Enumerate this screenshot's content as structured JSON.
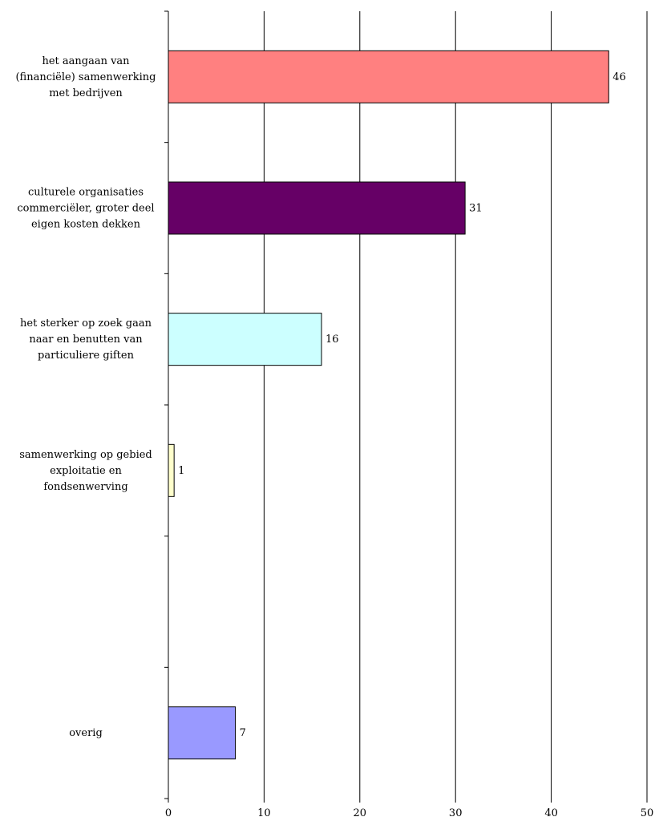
{
  "chart_data": {
    "type": "bar",
    "orientation": "horizontal",
    "categories": [
      [
        "het aangaan van",
        "(financiële) samenwerking",
        "met bedrijven"
      ],
      [
        "culturele organisaties",
        "commerciëler, groter deel",
        "eigen kosten dekken"
      ],
      [
        "het sterker op zoek gaan",
        "naar en benutten van",
        "particuliere giften"
      ],
      [
        "samenwerking op gebied",
        "exploitatie en",
        "fondsenwerving"
      ],
      [],
      [
        "overig"
      ]
    ],
    "values": [
      46,
      31,
      16,
      1,
      null,
      7
    ],
    "display_values": [
      46,
      31,
      16,
      0.6,
      null,
      7
    ],
    "data_labels": [
      "46",
      "31",
      "16",
      "1",
      "",
      "7"
    ],
    "colors": [
      "#FF8080",
      "#660066",
      "#CCFFFF",
      "#FFFFCC",
      "#ffffff",
      "#9999FF"
    ],
    "xlim": [
      0,
      50
    ],
    "x_ticks": [
      0,
      10,
      20,
      30,
      40,
      50
    ],
    "x_tick_labels": [
      "0",
      "10",
      "20",
      "30",
      "40",
      "50"
    ],
    "grid": "vertical",
    "title": "",
    "xlabel": "",
    "ylabel": ""
  }
}
